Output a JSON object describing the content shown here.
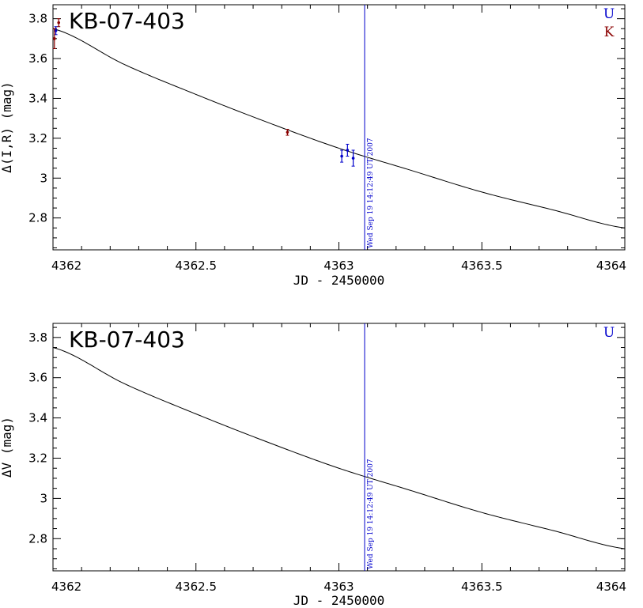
{
  "chart_data": [
    {
      "type": "line",
      "title": "KB-07-403",
      "xlabel": "JD - 2450000",
      "ylabel": "Δ(I,R) (mag)",
      "xlim": [
        4362,
        4364
      ],
      "ylim": [
        2.64,
        3.87
      ],
      "x_ticks": [
        4362,
        4362.5,
        4363,
        4363.5,
        4364
      ],
      "x_tick_labels": [
        "4362",
        "4362.5",
        "4363",
        "4363.5",
        "4364"
      ],
      "y_ticks": [
        2.8,
        3,
        3.2,
        3.4,
        3.6,
        3.8
      ],
      "y_tick_labels": [
        "2.8",
        "3",
        "3.2",
        "3.4",
        "3.6",
        "3.8"
      ],
      "model_curve": {
        "x": [
          4362,
          4362.25,
          4362.5,
          4362.75,
          4363,
          4363.25,
          4363.5,
          4363.75,
          4364
        ],
        "y": [
          3.75,
          3.57,
          3.42,
          3.28,
          3.15,
          3.04,
          2.93,
          2.84,
          2.75
        ]
      },
      "marker": {
        "x": 4363.09,
        "label": "Wed Sep 19 14:12:49 UT 2007",
        "color": "#0000cc"
      },
      "legend": [
        {
          "label": "U",
          "color": "#0000cc"
        },
        {
          "label": "K",
          "color": "#8b0000"
        }
      ],
      "series": [
        {
          "name": "U",
          "color": "#0000cc",
          "points": [
            {
              "x": 4362.01,
              "y": 3.74,
              "err": 0.02
            },
            {
              "x": 4363.01,
              "y": 3.11,
              "err": 0.03
            },
            {
              "x": 4363.03,
              "y": 3.14,
              "err": 0.03
            },
            {
              "x": 4363.05,
              "y": 3.1,
              "err": 0.04
            }
          ]
        },
        {
          "name": "K",
          "color": "#8b0000",
          "points": [
            {
              "x": 4362.005,
              "y": 3.7,
              "err": 0.05
            },
            {
              "x": 4362.02,
              "y": 3.78,
              "err": 0.02
            },
            {
              "x": 4362.82,
              "y": 3.23,
              "err": 0.015
            }
          ]
        }
      ]
    },
    {
      "type": "line",
      "title": "KB-07-403",
      "xlabel": "JD - 2450000",
      "ylabel": "ΔV (mag)",
      "xlim": [
        4362,
        4364
      ],
      "ylim": [
        2.64,
        3.87
      ],
      "x_ticks": [
        4362,
        4362.5,
        4363,
        4363.5,
        4364
      ],
      "x_tick_labels": [
        "4362",
        "4362.5",
        "4363",
        "4363.5",
        "4364"
      ],
      "y_ticks": [
        2.8,
        3,
        3.2,
        3.4,
        3.6,
        3.8
      ],
      "y_tick_labels": [
        "2.8",
        "3",
        "3.2",
        "3.4",
        "3.6",
        "3.8"
      ],
      "model_curve": {
        "x": [
          4362,
          4362.25,
          4362.5,
          4362.75,
          4363,
          4363.25,
          4363.5,
          4363.75,
          4364
        ],
        "y": [
          3.75,
          3.57,
          3.42,
          3.28,
          3.15,
          3.04,
          2.93,
          2.84,
          2.75
        ]
      },
      "marker": {
        "x": 4363.09,
        "label": "Wed Sep 19 14:12:49 UT 2007",
        "color": "#0000cc"
      },
      "legend": [
        {
          "label": "U",
          "color": "#0000cc"
        }
      ],
      "series": []
    }
  ]
}
